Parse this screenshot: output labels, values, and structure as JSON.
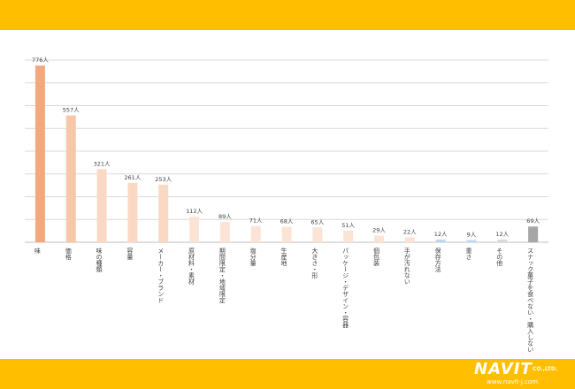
{
  "colors": {
    "band": "#ffbf00",
    "grid": "#d9d9d9",
    "axis": "#bfbfbf",
    "text": "#404040"
  },
  "logo": {
    "main": "NAVIT",
    "suffix": "CO.,LTD.",
    "url": "www.navit-j.com"
  },
  "chart_data": {
    "type": "bar",
    "title": "",
    "xlabel": "",
    "ylabel": "",
    "ylim": [
      0,
      800
    ],
    "grid": true,
    "legend": "none",
    "value_suffix": "人",
    "categories": [
      "味",
      "価格",
      "味の種類",
      "容量",
      "メーカー・ブランド",
      "原材料・素材",
      "期間限定・地域限定",
      "塩分量",
      "生産地",
      "大きさ・形",
      "パッケージ・デザイン・容器",
      "個包装",
      "手が汚れない",
      "保存方法",
      "重さ",
      "その他",
      "スナック菓子を食べない・購入しない"
    ],
    "values": [
      776,
      557,
      321,
      261,
      253,
      112,
      89,
      71,
      68,
      65,
      51,
      29,
      22,
      12,
      9,
      12,
      69
    ],
    "bar_colors": [
      "#f2a97f",
      "#f6c8a8",
      "#f9d9c3",
      "#f9d9c3",
      "#f9d9c3",
      "#fbe4d6",
      "#fbe4d6",
      "#fbe4d6",
      "#fbe4d6",
      "#fbe4d6",
      "#fbe4d6",
      "#fbe4d6",
      "#fbe4d6",
      "#bdd7ee",
      "#bdd7ee",
      "#d9d9d9",
      "#a6a6a6"
    ]
  }
}
